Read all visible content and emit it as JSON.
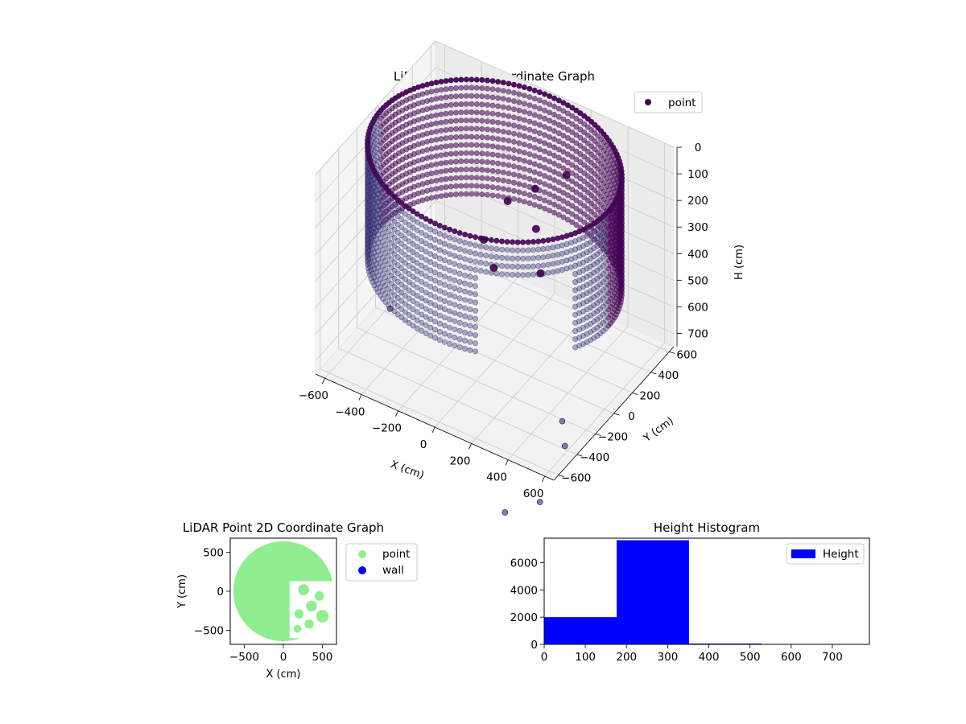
{
  "chart_data": [
    {
      "type": "scatter3d",
      "title": "LiDAR Point 3D Coordinate Graph",
      "xlabel": "X (cm)",
      "ylabel": "Y (cm)",
      "zlabel": "H (cm)",
      "x_ticks": [
        "−600",
        "−400",
        "−200",
        "0",
        "200",
        "400",
        "600"
      ],
      "y_ticks": [
        "−600",
        "−400",
        "−200",
        "0",
        "200",
        "400",
        "600"
      ],
      "z_ticks": [
        "0",
        "100",
        "200",
        "300",
        "400",
        "500",
        "600",
        "700"
      ],
      "xlim": [
        -650,
        650
      ],
      "ylim": [
        -650,
        650
      ],
      "zlim": [
        0,
        750
      ],
      "z_inverted": true,
      "legend": {
        "position": "top-right",
        "entries": [
          {
            "name": "point",
            "color": "#440154"
          }
        ]
      },
      "ring": {
        "radius": 620,
        "h_top": 0,
        "h_bottom": 430
      },
      "interior_points": [
        {
          "x": 180,
          "y": 420,
          "h": 160
        },
        {
          "x": 60,
          "y": 320,
          "h": 210
        },
        {
          "x": -60,
          "y": 260,
          "h": 270
        },
        {
          "x": 120,
          "y": 210,
          "h": 300
        },
        {
          "x": -120,
          "y": 120,
          "h": 380
        },
        {
          "x": 200,
          "y": 100,
          "h": 400
        },
        {
          "x": -20,
          "y": 30,
          "h": 420
        }
      ],
      "outlier_points": [
        {
          "x": -560,
          "y": -20,
          "h": 720
        },
        {
          "x": 560,
          "y": -380,
          "h": 660
        },
        {
          "x": 620,
          "y": -470,
          "h": 700
        },
        {
          "x": 700,
          "y": -900,
          "h": 720
        },
        {
          "x": 600,
          "y": -1080,
          "h": 720
        }
      ],
      "colors": {
        "point": "#440154",
        "mid": "#3b528b"
      }
    },
    {
      "type": "scatter",
      "title": "LiDAR Point 2D Coordinate Graph",
      "xlabel": "X (cm)",
      "ylabel": "Y (cm)",
      "x_ticks": [
        -500,
        0,
        500
      ],
      "y_ticks": [
        -500,
        0,
        500
      ],
      "xlim": [
        -680,
        680
      ],
      "ylim": [
        -680,
        680
      ],
      "legend": {
        "position": "outside-right",
        "entries": [
          {
            "name": "point",
            "color": "#90ee90"
          },
          {
            "name": "wall",
            "color": "#0000ff"
          }
        ]
      },
      "disc": {
        "center": [
          0,
          0
        ],
        "radius": 640,
        "color": "#90ee90"
      },
      "notch": [
        [
          80,
          130
        ],
        [
          650,
          130
        ],
        [
          650,
          -600
        ],
        [
          80,
          -600
        ]
      ],
      "blobs": [
        {
          "x": 260,
          "y": 20,
          "r": 70
        },
        {
          "x": 460,
          "y": -60,
          "r": 60
        },
        {
          "x": 360,
          "y": -190,
          "r": 70
        },
        {
          "x": 200,
          "y": -290,
          "r": 60
        },
        {
          "x": 500,
          "y": -320,
          "r": 80
        },
        {
          "x": 330,
          "y": -420,
          "r": 60
        },
        {
          "x": 180,
          "y": -480,
          "r": 50
        }
      ]
    },
    {
      "type": "bar",
      "title": "Height Histogram",
      "xlim": [
        0,
        790
      ],
      "ylim": [
        0,
        7800
      ],
      "x_ticks": [
        0,
        100,
        200,
        300,
        400,
        500,
        600,
        700
      ],
      "y_ticks": [
        0,
        2000,
        4000,
        6000
      ],
      "legend": {
        "position": "top-right",
        "entries": [
          {
            "name": "Height",
            "color": "#0000ff"
          }
        ]
      },
      "bins": [
        {
          "start": 0,
          "end": 176,
          "value": 2000
        },
        {
          "start": 176,
          "end": 352,
          "value": 7650
        },
        {
          "start": 352,
          "end": 528,
          "value": 60
        },
        {
          "start": 528,
          "end": 704,
          "value": 0
        }
      ],
      "color": "#0000ff"
    }
  ]
}
